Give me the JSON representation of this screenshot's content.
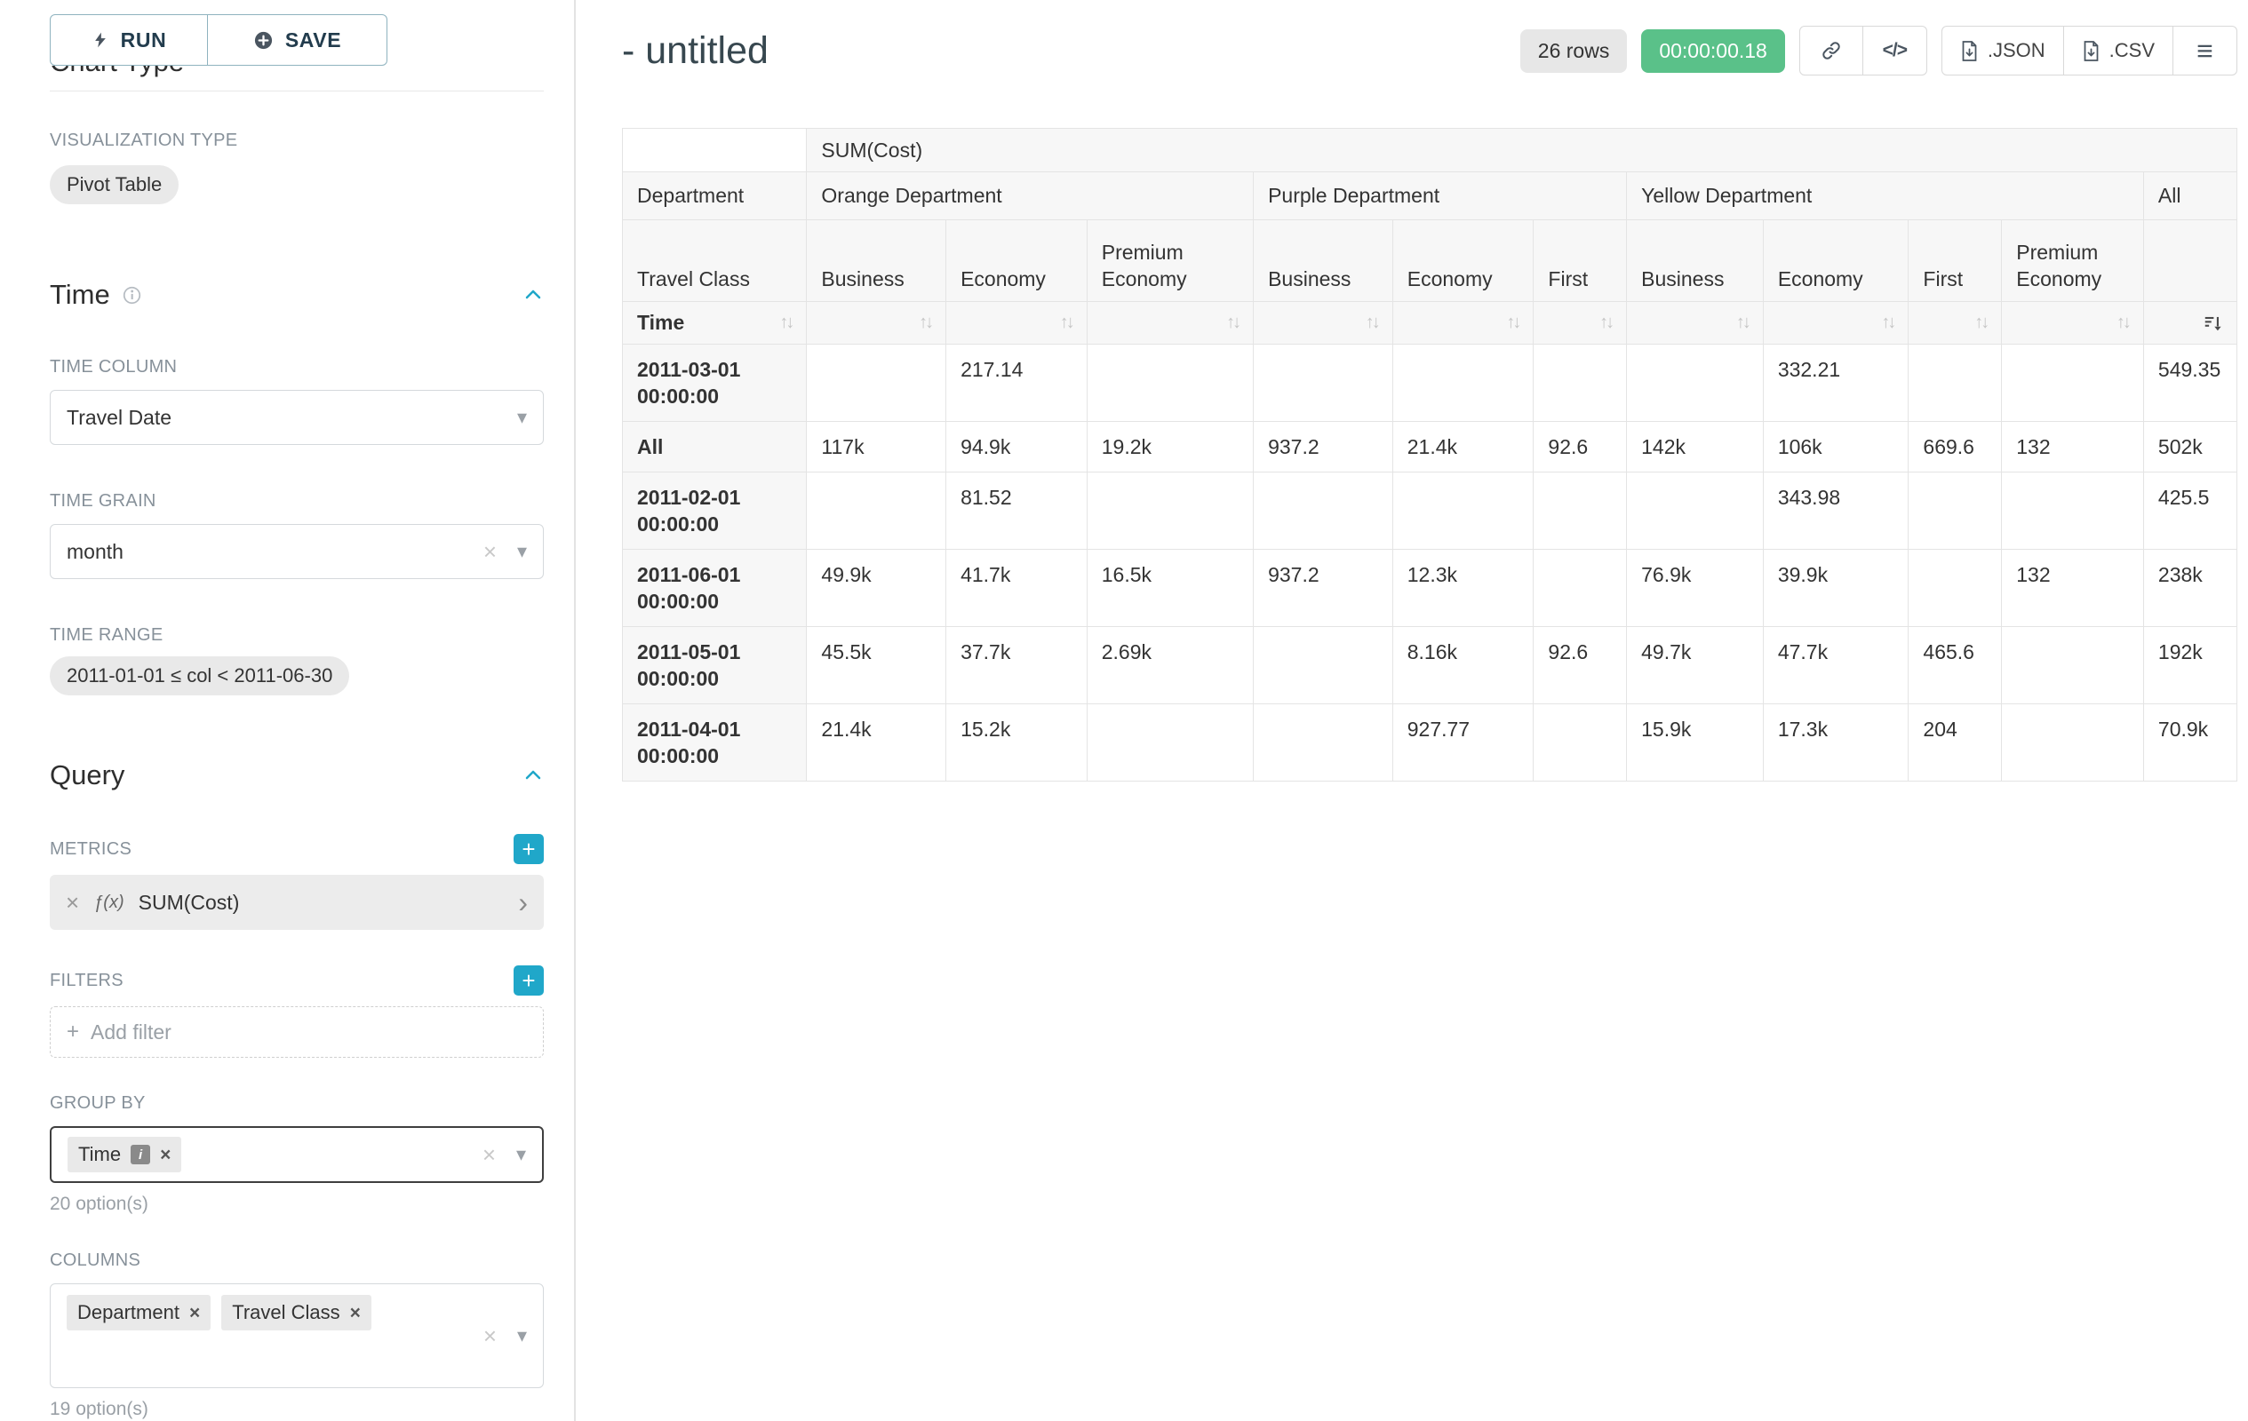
{
  "colors": {
    "accent": "#20a7c9",
    "timer_green": "#5ac189"
  },
  "icons": {
    "plus": "+",
    "clear": "×",
    "caret_down": "▾",
    "code": "</>",
    "menu": "≡",
    "sort_arrows": "↑↓",
    "expand_caret": "›",
    "info_badge": "i"
  },
  "sidebar": {
    "run_button": "RUN",
    "save_button": "SAVE",
    "chart_type_heading": "Chart Type",
    "visualization_type_label": "VISUALIZATION TYPE",
    "visualization_type_value": "Pivot Table",
    "time": {
      "heading": "Time",
      "time_column_label": "TIME COLUMN",
      "time_column_value": "Travel Date",
      "time_grain_label": "TIME GRAIN",
      "time_grain_value": "month",
      "time_range_label": "TIME RANGE",
      "time_range_value": "2011-01-01 ≤ col < 2011-06-30"
    },
    "query": {
      "heading": "Query",
      "metrics_label": "METRICS",
      "metric_fx": "ƒ(x)",
      "metric_name": "SUM(Cost)",
      "filters_label": "FILTERS",
      "add_filter_placeholder": "Add filter",
      "group_by_label": "GROUP BY",
      "group_by_values": [
        "Time"
      ],
      "group_by_hint": "20 option(s)",
      "columns_label": "COLUMNS",
      "columns_values": [
        "Department",
        "Travel Class"
      ],
      "columns_hint": "19 option(s)"
    }
  },
  "results_header": {
    "title": "- untitled",
    "row_count_badge": "26 rows",
    "timer_badge": "00:00:00.18",
    "json_button": ".JSON",
    "csv_button": ".CSV"
  },
  "pivot_table": {
    "type": "table",
    "metric_header": "SUM(Cost)",
    "row_dimension": "Time",
    "col_dimension_label": "Department",
    "col_subdimension_label": "Travel Class",
    "column_groups": [
      {
        "label": "Orange Department",
        "columns": [
          "Business",
          "Economy",
          "Premium Economy"
        ]
      },
      {
        "label": "Purple Department",
        "columns": [
          "Business",
          "Economy",
          "First"
        ]
      },
      {
        "label": "Yellow Department",
        "columns": [
          "Business",
          "Economy",
          "First",
          "Premium Economy"
        ]
      },
      {
        "label": "All",
        "columns": [
          ""
        ]
      }
    ],
    "rows": [
      {
        "label": "2011-03-01 00:00:00",
        "values": [
          "",
          "217.14",
          "",
          "",
          "",
          "",
          "",
          "332.21",
          "",
          "",
          "549.35"
        ]
      },
      {
        "label": "All",
        "values": [
          "117k",
          "94.9k",
          "19.2k",
          "937.2",
          "21.4k",
          "92.6",
          "142k",
          "106k",
          "669.6",
          "132",
          "502k"
        ]
      },
      {
        "label": "2011-02-01 00:00:00",
        "values": [
          "",
          "81.52",
          "",
          "",
          "",
          "",
          "",
          "343.98",
          "",
          "",
          "425.5"
        ]
      },
      {
        "label": "2011-06-01 00:00:00",
        "values": [
          "49.9k",
          "41.7k",
          "16.5k",
          "937.2",
          "12.3k",
          "",
          "76.9k",
          "39.9k",
          "",
          "132",
          "238k"
        ]
      },
      {
        "label": "2011-05-01 00:00:00",
        "values": [
          "45.5k",
          "37.7k",
          "2.69k",
          "",
          "8.16k",
          "92.6",
          "49.7k",
          "47.7k",
          "465.6",
          "",
          "192k"
        ]
      },
      {
        "label": "2011-04-01 00:00:00",
        "values": [
          "21.4k",
          "15.2k",
          "",
          "",
          "927.77",
          "",
          "15.9k",
          "17.3k",
          "204",
          "",
          "70.9k"
        ]
      }
    ]
  }
}
